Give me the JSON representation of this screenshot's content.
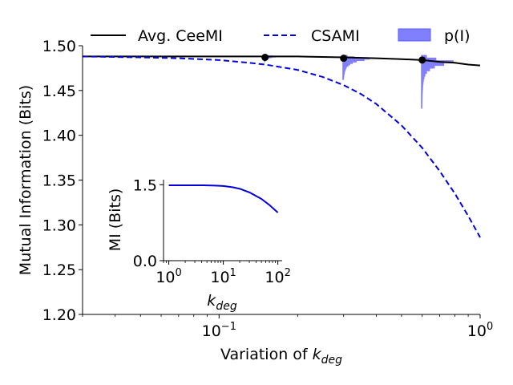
{
  "chart_data": [
    {
      "type": "line",
      "xscale": "log",
      "xlim": [
        0.03,
        1.0
      ],
      "ylim": [
        1.2,
        1.5
      ],
      "xlabel_text": "Variation of ",
      "xlabel_var": "k",
      "xlabel_sub": "deg",
      "ylabel": "Mutual Information (Bits)",
      "yticks": [
        1.2,
        1.25,
        1.3,
        1.35,
        1.4,
        1.45,
        1.5
      ],
      "ytick_labels": [
        "1.20",
        "1.25",
        "1.30",
        "1.35",
        "1.40",
        "1.45",
        "1.50"
      ],
      "xticks": [
        0.1,
        1.0
      ],
      "xtick_labels": [
        {
          "base": "10",
          "exp": "−1"
        },
        {
          "base": "10",
          "exp": "0"
        }
      ],
      "legend": {
        "placement": "top",
        "entries": [
          {
            "label": "Avg. CeeMI",
            "style": "solid",
            "color": "#000000"
          },
          {
            "label": "CSAMI",
            "style": "dashed",
            "color": "#0000dd"
          },
          {
            "label": "p(I)",
            "style": "patch",
            "color": "#8080ff"
          }
        ]
      },
      "series": [
        {
          "name": "Avg. CeeMI",
          "color": "#000000",
          "style": "solid",
          "x": [
            0.03,
            0.05,
            0.1,
            0.15,
            0.2,
            0.3,
            0.4,
            0.5,
            0.6,
            0.7,
            0.8,
            0.9,
            1.0
          ],
          "y": [
            1.488,
            1.488,
            1.488,
            1.488,
            1.488,
            1.487,
            1.486,
            1.485,
            1.484,
            1.482,
            1.481,
            1.479,
            1.478
          ]
        },
        {
          "name": "CSAMI",
          "color": "#0000dd",
          "style": "dashed",
          "x": [
            0.03,
            0.05,
            0.07,
            0.1,
            0.13,
            0.15,
            0.2,
            0.25,
            0.3,
            0.35,
            0.4,
            0.5,
            0.6,
            0.7,
            0.8,
            0.9,
            1.0
          ],
          "y": [
            1.488,
            1.487,
            1.486,
            1.484,
            1.481,
            1.479,
            1.473,
            1.465,
            1.456,
            1.446,
            1.435,
            1.411,
            1.386,
            1.36,
            1.335,
            1.31,
            1.286
          ]
        }
      ],
      "markers": [
        {
          "x": 0.15,
          "y": 1.487
        },
        {
          "x": 0.3,
          "y": 1.486
        },
        {
          "x": 0.6,
          "y": 1.484
        }
      ],
      "distributions": [
        {
          "x": 0.15,
          "top": 1.4897,
          "bottom": 1.482,
          "max_width": 0.06,
          "profile": [
            0.2,
            0.5,
            1.0,
            0.7,
            0.45,
            0.3,
            0.2,
            0.12,
            0.08,
            0.05,
            0.03,
            0.02
          ]
        },
        {
          "x": 0.3,
          "top": 1.4897,
          "bottom": 1.462,
          "max_width": 0.1,
          "profile": [
            0.15,
            0.4,
            1.0,
            0.8,
            0.5,
            0.35,
            0.25,
            0.18,
            0.12,
            0.09,
            0.07,
            0.05,
            0.04,
            0.03,
            0.02,
            0.015,
            0.01
          ]
        },
        {
          "x": 0.6,
          "top": 1.4897,
          "bottom": 1.43,
          "max_width": 0.12,
          "profile": [
            0.15,
            0.45,
            1.0,
            0.7,
            0.4,
            0.25,
            0.15,
            0.1,
            0.07,
            0.05,
            0.04,
            0.03,
            0.025,
            0.02,
            0.015,
            0.012,
            0.01,
            0.008,
            0.006,
            0.005
          ]
        }
      ]
    },
    {
      "type": "line",
      "role": "inset",
      "xscale": "log",
      "xlim": [
        0.8,
        120
      ],
      "ylim": [
        0.0,
        1.6
      ],
      "xlabel_var": "k",
      "xlabel_sub": "deg",
      "ylabel": "MI (Bits)",
      "yticks": [
        0.0,
        1.5
      ],
      "ytick_labels": [
        "0.0",
        "1.5"
      ],
      "xticks": [
        1,
        10,
        100
      ],
      "xtick_labels": [
        {
          "base": "10",
          "exp": "0"
        },
        {
          "base": "10",
          "exp": "1"
        },
        {
          "base": "10",
          "exp": "2"
        }
      ],
      "series": [
        {
          "color": "#0000dd",
          "style": "solid",
          "x": [
            1,
            2,
            3,
            5,
            7,
            10,
            15,
            20,
            30,
            50,
            70,
            100
          ],
          "y": [
            1.49,
            1.49,
            1.49,
            1.488,
            1.484,
            1.475,
            1.45,
            1.42,
            1.35,
            1.22,
            1.1,
            0.95
          ]
        }
      ]
    }
  ]
}
